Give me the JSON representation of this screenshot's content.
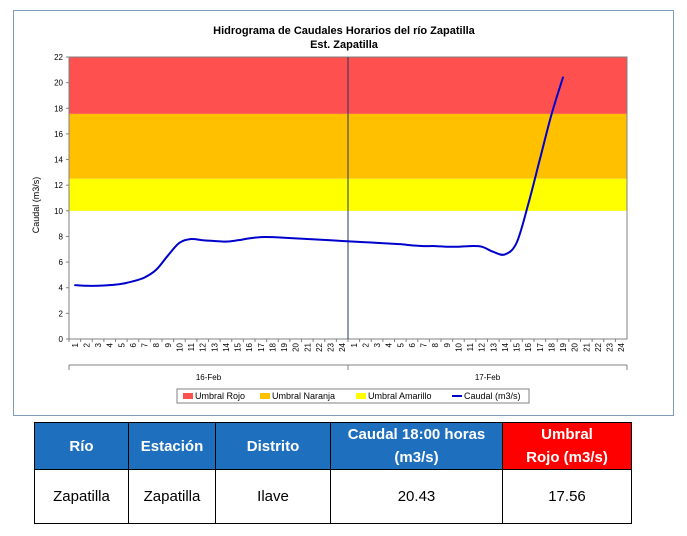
{
  "chart_data": {
    "type": "line",
    "title": "Hidrograma de Caudales Horarios del río Zapatilla",
    "subtitle": "Est. Zapatilla",
    "ylabel": "Caudal  (m3/s)",
    "ylim": [
      0,
      22
    ],
    "yticks": [
      0,
      2,
      4,
      6,
      8,
      10,
      12,
      14,
      16,
      18,
      20,
      22
    ],
    "x_tick_labels": [
      "1",
      "2",
      "3",
      "4",
      "5",
      "6",
      "7",
      "8",
      "9",
      "10",
      "11",
      "12",
      "13",
      "14",
      "15",
      "16",
      "17",
      "18",
      "19",
      "20",
      "21",
      "22",
      "23",
      "24",
      "1",
      "2",
      "3",
      "4",
      "5",
      "6",
      "7",
      "8",
      "9",
      "10",
      "11",
      "12",
      "13",
      "14",
      "15",
      "16",
      "17",
      "18",
      "19",
      "20",
      "21",
      "22",
      "23",
      "24"
    ],
    "day_groups": [
      {
        "label": "16-Feb",
        "start": 1,
        "end": 24
      },
      {
        "label": "17-Feb",
        "start": 25,
        "end": 48
      }
    ],
    "thresholds": [
      {
        "name": "Umbral Rojo",
        "from": 17.56,
        "to": 22,
        "color": "#ff5050"
      },
      {
        "name": "Umbral Naranja",
        "from": 12.5,
        "to": 17.56,
        "color": "#ffc000"
      },
      {
        "name": "Umbral Amarillo",
        "from": 10,
        "to": 12.5,
        "color": "#ffff00"
      }
    ],
    "series": [
      {
        "name": "Caudal (m3/s)",
        "color": "#0000cc",
        "x": [
          1,
          2,
          3,
          4,
          5,
          6,
          7,
          8,
          9,
          10,
          11,
          12,
          13,
          14,
          15,
          16,
          17,
          18,
          19,
          20,
          21,
          22,
          23,
          24,
          25,
          26,
          27,
          28,
          29,
          30,
          31,
          32,
          33,
          34,
          35,
          36,
          37,
          38,
          39,
          40,
          41,
          42,
          43
        ],
        "values": [
          4.2,
          4.15,
          4.15,
          4.2,
          4.3,
          4.5,
          4.8,
          5.4,
          6.5,
          7.5,
          7.8,
          7.7,
          7.65,
          7.6,
          7.7,
          7.85,
          7.95,
          7.95,
          7.9,
          7.85,
          7.8,
          7.75,
          7.7,
          7.65,
          7.6,
          7.55,
          7.5,
          7.45,
          7.4,
          7.3,
          7.25,
          7.25,
          7.2,
          7.2,
          7.25,
          7.2,
          6.8,
          6.6,
          7.5,
          10.5,
          14.0,
          17.5,
          20.43
        ]
      }
    ],
    "legend": [
      "Umbral Rojo",
      "Umbral Naranja",
      "Umbral Amarillo",
      "Caudal (m3/s)"
    ],
    "legend_position": "bottom"
  },
  "table": {
    "headers": [
      {
        "text": "Río"
      },
      {
        "text": "Estación"
      },
      {
        "text": "Distrito"
      },
      {
        "line1": "Caudal  18:00 horas",
        "line2": "(m3/s)"
      },
      {
        "line1": "Umbral",
        "line2": "Rojo (m3/s)"
      }
    ],
    "row": {
      "rio": "Zapatilla",
      "estacion": "Zapatilla",
      "distrito": "Ilave",
      "caudal": "20.43",
      "umbral_rojo": "17.56"
    }
  }
}
